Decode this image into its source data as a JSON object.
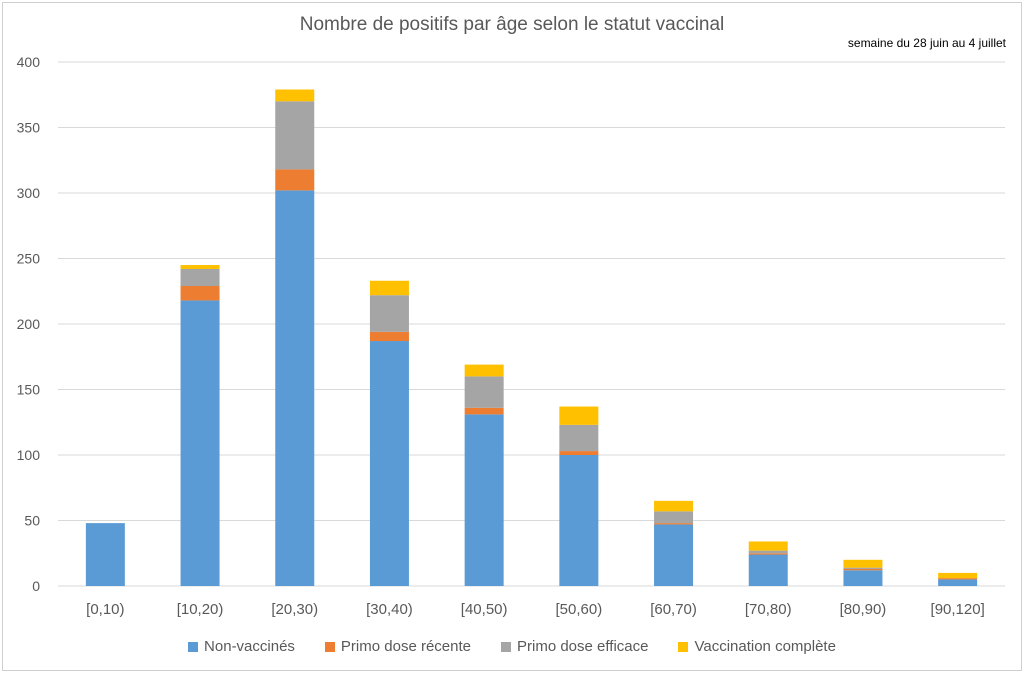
{
  "chart_data": {
    "type": "bar",
    "stacked": true,
    "title": "Nombre de positifs par âge selon le statut vaccinal",
    "subtitle": "semaine du 28 juin au 4 juillet",
    "categories": [
      "[0,10)",
      "[10,20)",
      "[20,30)",
      "[30,40)",
      "[40,50)",
      "[50,60)",
      "[60,70)",
      "[70,80)",
      "[80,90)",
      "[90,120]"
    ],
    "ylim": [
      0,
      400
    ],
    "yticks": [
      0,
      50,
      100,
      150,
      200,
      250,
      300,
      350,
      400
    ],
    "grid": true,
    "legend_position": "bottom",
    "series": [
      {
        "name": "Non-vaccinés",
        "color": "#5B9BD5",
        "values": [
          48,
          218,
          302,
          187,
          131,
          100,
          47,
          24,
          12,
          5
        ]
      },
      {
        "name": "Primo dose récente",
        "color": "#ED7D31",
        "values": [
          0,
          11,
          16,
          7,
          5,
          3,
          1,
          1,
          1,
          1
        ]
      },
      {
        "name": "Primo dose efficace",
        "color": "#A5A5A5",
        "values": [
          0,
          13,
          52,
          28,
          24,
          20,
          9,
          2,
          1,
          0
        ]
      },
      {
        "name": "Vaccination complète",
        "color": "#FFC000",
        "values": [
          0,
          3,
          9,
          11,
          9,
          14,
          8,
          7,
          6,
          4
        ]
      }
    ]
  }
}
